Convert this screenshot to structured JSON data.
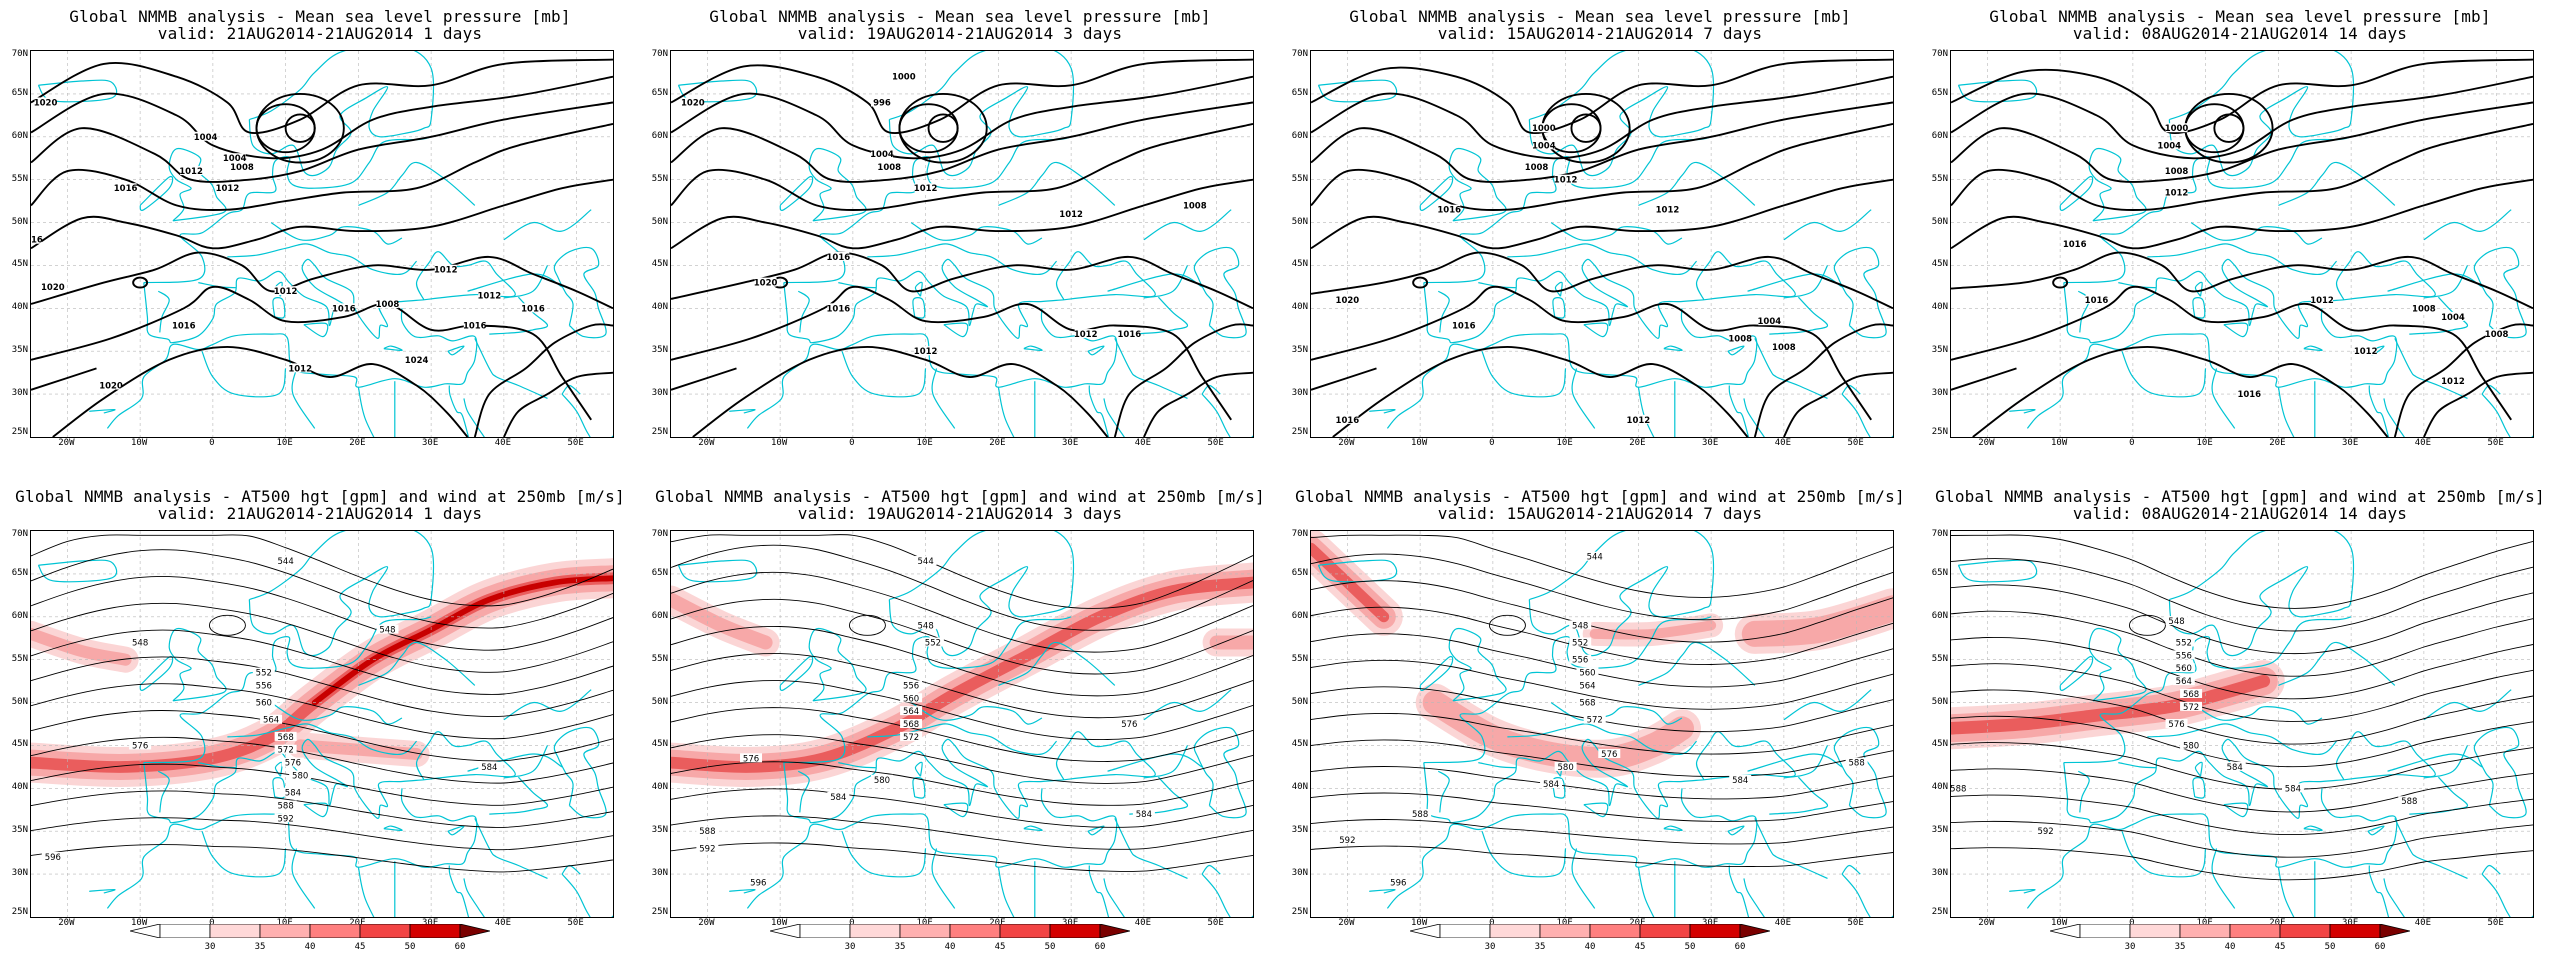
{
  "axes": {
    "lat_labels": [
      "70N",
      "65N",
      "60N",
      "55N",
      "50N",
      "45N",
      "40N",
      "35N",
      "30N",
      "25N"
    ],
    "lon_labels": [
      "20W",
      "10W",
      "0",
      "10E",
      "20E",
      "30E",
      "40E",
      "50E"
    ]
  },
  "colorbar": {
    "values": [
      "30",
      "35",
      "40",
      "45",
      "50",
      "60"
    ],
    "colors": [
      "#ffffff",
      "#ffd8d8",
      "#ffb0b0",
      "#ff7f7f",
      "#f24444",
      "#d40000",
      "#7a0000"
    ]
  },
  "colors": {
    "coastline": "#00c4d4",
    "grid": "#b8b8b8",
    "contour": "#000000",
    "jet_light": "#f6a0a0",
    "jet_dark": "#c80000"
  },
  "panels": [
    {
      "title": "Global NMMB analysis - Mean sea level pressure [mb]",
      "valid": "valid: 21AUG2014-21AUG2014   1 days",
      "variable": "mslp",
      "labels": [
        "1020",
        "1004",
        "1012",
        "1016",
        "1008",
        "1004",
        "1012",
        "1020",
        "1016",
        "1012",
        "1016",
        "1008",
        "1012",
        "1016",
        "1012",
        "1016",
        "1012",
        "1020",
        "1024",
        "1016"
      ]
    },
    {
      "title": "Global NMMB analysis - Mean sea level pressure [mb]",
      "valid": "valid: 19AUG2014-21AUG2014   3 days",
      "variable": "mslp",
      "labels": [
        "1020",
        "1000",
        "996",
        "1004",
        "1008",
        "1012",
        "1012",
        "1016",
        "1020",
        "1016",
        "1012",
        "1012",
        "1016",
        "1008"
      ]
    },
    {
      "title": "Global NMMB analysis - Mean sea level pressure [mb]",
      "valid": "valid: 15AUG2014-21AUG2014   7 days",
      "variable": "mslp",
      "labels": [
        "1000",
        "1004",
        "1008",
        "1012",
        "1016",
        "1020",
        "1016",
        "1012",
        "1008",
        "1004",
        "1008",
        "1012",
        "1016"
      ]
    },
    {
      "title": "Global NMMB analysis - Mean sea level pressure [mb]",
      "valid": "valid: 08AUG2014-21AUG2014  14 days",
      "variable": "mslp",
      "labels": [
        "1004",
        "1000",
        "1008",
        "1012",
        "1016",
        "1016",
        "1012",
        "1008",
        "1004",
        "1008",
        "1012",
        "1016",
        "1012"
      ]
    },
    {
      "title": "Global NMMB analysis - AT500 hgt [gpm] and wind at 250mb [m/s]",
      "valid": "valid: 21AUG2014-21AUG2014   1 days",
      "variable": "z500",
      "labels": [
        "544",
        "548",
        "552",
        "556",
        "560",
        "564",
        "568",
        "572",
        "576",
        "580",
        "584",
        "588",
        "592",
        "596",
        "548",
        "576",
        "584"
      ]
    },
    {
      "title": "Global NMMB analysis - AT500 hgt [gpm] and wind at 250mb [m/s]",
      "valid": "valid: 19AUG2014-21AUG2014   3 days",
      "variable": "z500",
      "labels": [
        "544",
        "548",
        "552",
        "556",
        "560",
        "564",
        "568",
        "572",
        "576",
        "580",
        "584",
        "588",
        "592",
        "596",
        "576",
        "584"
      ]
    },
    {
      "title": "Global NMMB analysis - AT500 hgt [gpm] and wind at 250mb [m/s]",
      "valid": "valid: 15AUG2014-21AUG2014   7 days",
      "variable": "z500",
      "labels": [
        "544",
        "548",
        "552",
        "556",
        "560",
        "564",
        "568",
        "572",
        "576",
        "580",
        "584",
        "588",
        "592",
        "596",
        "584",
        "588"
      ]
    },
    {
      "title": "Global NMMB analysis - AT500 hgt [gpm] and wind at 250mb [m/s]",
      "valid": "valid: 08AUG2014-21AUG2014  14 days",
      "variable": "z500",
      "labels": [
        "548",
        "552",
        "556",
        "560",
        "564",
        "568",
        "572",
        "576",
        "580",
        "584",
        "588",
        "592",
        "584",
        "588"
      ]
    }
  ]
}
